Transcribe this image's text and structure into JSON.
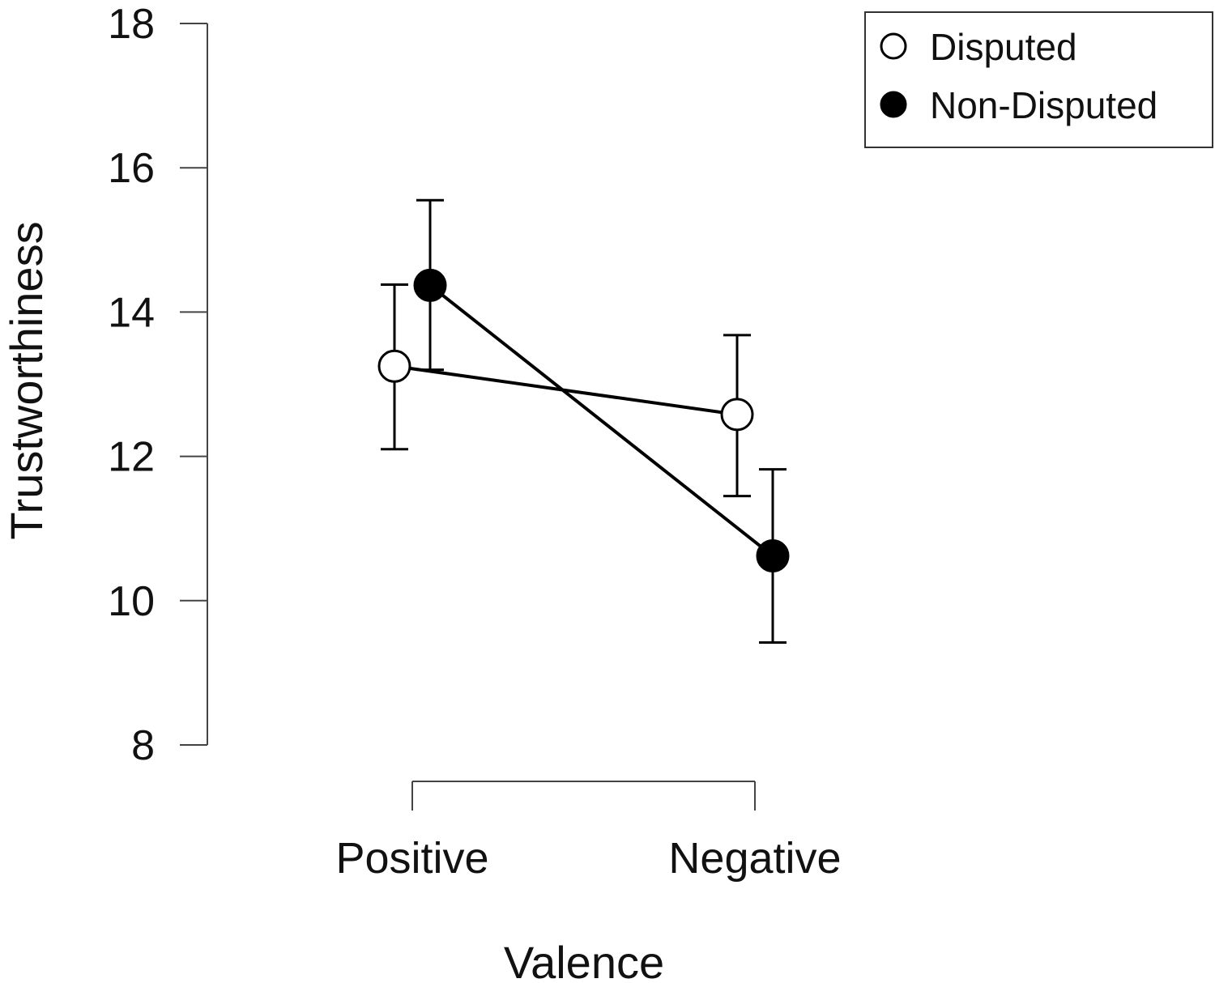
{
  "chart_data": {
    "type": "line",
    "title": "",
    "xlabel": "Valence",
    "ylabel": "Trustworthiness",
    "categories": [
      "Positive",
      "Negative"
    ],
    "ylim": [
      8,
      18
    ],
    "yticks": [
      8,
      10,
      12,
      14,
      16,
      18
    ],
    "series": [
      {
        "name": "Disputed",
        "marker": "open-circle",
        "values": [
          13.25,
          12.58
        ],
        "error_low": [
          12.1,
          11.45
        ],
        "error_high": [
          14.38,
          13.68
        ]
      },
      {
        "name": "Non-Disputed",
        "marker": "filled-circle",
        "values": [
          14.37,
          10.62
        ],
        "error_low": [
          13.2,
          9.42
        ],
        "error_high": [
          15.55,
          11.82
        ]
      }
    ],
    "legend_position": "top-right",
    "grid": false
  }
}
